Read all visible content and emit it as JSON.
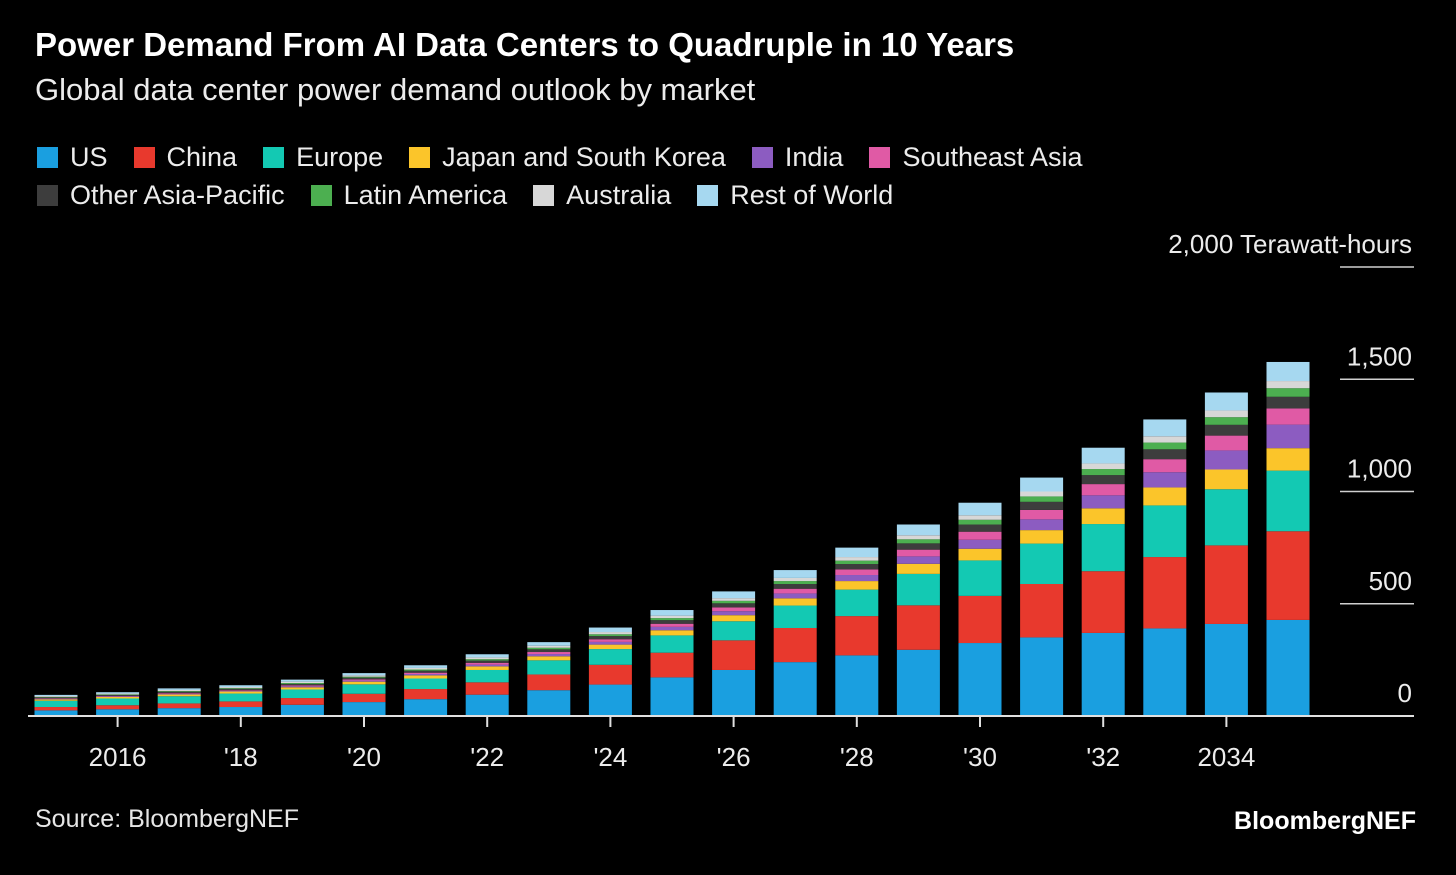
{
  "header": {
    "title": "Power Demand From AI Data Centers to Quadruple in 10 Years",
    "subtitle": "Global data center power demand outlook by market"
  },
  "footer": {
    "source": "Source: BloombergNEF",
    "brand": "BloombergNEF"
  },
  "chart_data": {
    "type": "bar",
    "stacked": true,
    "unit_label": "Terawatt-hours",
    "categories": [
      "2015",
      "2016",
      "2017",
      "2018",
      "2019",
      "2020",
      "2021",
      "2022",
      "2023",
      "2024",
      "2025",
      "2026",
      "2027",
      "2028",
      "2029",
      "2030",
      "2031",
      "2032",
      "2033",
      "2034",
      "2035"
    ],
    "x_tick_labels": [
      {
        "category": "2016",
        "label": "2016"
      },
      {
        "category": "2018",
        "label": "'18"
      },
      {
        "category": "2020",
        "label": "'20"
      },
      {
        "category": "2022",
        "label": "'22"
      },
      {
        "category": "2024",
        "label": "'24"
      },
      {
        "category": "2026",
        "label": "'26"
      },
      {
        "category": "2028",
        "label": "'28"
      },
      {
        "category": "2030",
        "label": "'30"
      },
      {
        "category": "2032",
        "label": "'32"
      },
      {
        "category": "2034",
        "label": "2034"
      }
    ],
    "y_ticks": [
      {
        "value": 0,
        "label": "0"
      },
      {
        "value": 500,
        "label": "500"
      },
      {
        "value": 1000,
        "label": "1,000"
      },
      {
        "value": 1500,
        "label": "1,500"
      },
      {
        "value": 2000,
        "label": "2,000"
      }
    ],
    "ylim": [
      0,
      2000
    ],
    "grid": true,
    "legend_position": "top-left",
    "series": [
      {
        "name": "US",
        "color": "#1a9fe0",
        "values": [
          25,
          30,
          35,
          40,
          50,
          62,
          75,
          95,
          115,
          140,
          172,
          205,
          240,
          270,
          295,
          325,
          350,
          370,
          390,
          410,
          428
        ]
      },
      {
        "name": "China",
        "color": "#e8392d",
        "values": [
          15,
          18,
          21,
          25,
          30,
          37,
          45,
          55,
          70,
          88,
          110,
          132,
          152,
          175,
          198,
          210,
          238,
          275,
          318,
          350,
          395
        ]
      },
      {
        "name": "Europe",
        "color": "#13c9b3",
        "values": [
          28,
          30,
          32,
          35,
          38,
          42,
          47,
          55,
          63,
          70,
          77,
          85,
          100,
          118,
          140,
          158,
          180,
          210,
          230,
          250,
          270
        ]
      },
      {
        "name": "Japan and South Korea",
        "color": "#fbc52a",
        "values": [
          6,
          7,
          8,
          9,
          10,
          12,
          14,
          16,
          18,
          20,
          23,
          27,
          32,
          38,
          45,
          52,
          60,
          70,
          80,
          88,
          100
        ]
      },
      {
        "name": "India",
        "color": "#8c5cc1",
        "values": [
          2,
          2,
          3,
          3,
          4,
          5,
          6,
          8,
          10,
          12,
          15,
          18,
          22,
          27,
          33,
          40,
          48,
          58,
          68,
          85,
          105
        ]
      },
      {
        "name": "Southeast Asia",
        "color": "#e05aa5",
        "values": [
          2,
          2,
          3,
          3,
          4,
          5,
          6,
          8,
          9,
          12,
          14,
          17,
          21,
          25,
          30,
          36,
          42,
          50,
          58,
          66,
          72
        ]
      },
      {
        "name": "Other Asia-Pacific",
        "color": "#3d3d3d",
        "values": [
          5,
          5,
          6,
          6,
          7,
          8,
          9,
          10,
          12,
          14,
          16,
          18,
          21,
          24,
          28,
          32,
          36,
          40,
          44,
          48,
          52
        ]
      },
      {
        "name": "Latin America",
        "color": "#4caf50",
        "values": [
          2,
          2,
          3,
          3,
          4,
          4,
          5,
          6,
          7,
          8,
          9,
          11,
          13,
          15,
          18,
          21,
          24,
          27,
          30,
          34,
          38
        ]
      },
      {
        "name": "Australia",
        "color": "#d7d7d7",
        "values": [
          4,
          4,
          5,
          5,
          6,
          6,
          7,
          8,
          9,
          10,
          11,
          12,
          14,
          16,
          18,
          20,
          22,
          25,
          28,
          30,
          32
        ]
      },
      {
        "name": "Rest of World",
        "color": "#a6d8f0",
        "values": [
          5,
          6,
          7,
          8,
          9,
          10,
          12,
          14,
          16,
          20,
          25,
          30,
          35,
          42,
          48,
          56,
          62,
          70,
          75,
          80,
          85
        ]
      }
    ]
  }
}
